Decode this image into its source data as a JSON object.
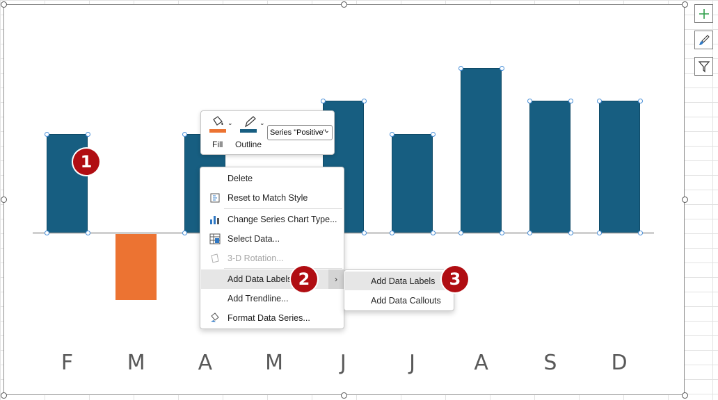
{
  "chart_data": {
    "type": "bar",
    "categories": [
      "F",
      "M",
      "A",
      "M",
      "J",
      "J",
      "A",
      "S",
      "D"
    ],
    "series": [
      {
        "name": "Positive",
        "values": [
          3,
          null,
          3,
          null,
          4,
          3,
          5,
          4,
          4
        ]
      },
      {
        "values": [
          null,
          -2,
          null,
          null,
          null,
          null,
          null,
          null,
          null
        ]
      }
    ],
    "ylim": [
      -4,
      6
    ],
    "colors": {
      "positive": "#175e81",
      "negative": "#ec7332"
    },
    "title": "",
    "xlabel": "",
    "ylabel": "",
    "grid": false
  },
  "badges": [
    "1",
    "2",
    "3"
  ],
  "mini_toolbar": {
    "fill_label": "Fill",
    "outline_label": "Outline",
    "series_select": "Series \"Positive\"",
    "fill_color": "#ec7332",
    "outline_color": "#175e81"
  },
  "context_menu": {
    "items": [
      {
        "label": "Delete",
        "icon": "none",
        "disabled": false
      },
      {
        "label": "Reset to Match Style",
        "icon": "reset-style-icon",
        "disabled": false
      },
      {
        "label": "Change Series Chart Type...",
        "icon": "chart-type-icon",
        "disabled": false
      },
      {
        "label": "Select Data...",
        "icon": "select-data-icon",
        "disabled": false
      },
      {
        "label": "3-D Rotation...",
        "icon": "rotation-3d-icon",
        "disabled": true
      },
      {
        "label": "Add Data Labels",
        "icon": "none",
        "disabled": false,
        "has_submenu": true
      },
      {
        "label": "Add Trendline...",
        "icon": "none",
        "disabled": false
      },
      {
        "label": "Format Data Series...",
        "icon": "format-series-icon",
        "disabled": false
      }
    ]
  },
  "submenu": {
    "items": [
      {
        "label": "Add Data Labels"
      },
      {
        "label": "Add Data Callouts"
      }
    ]
  },
  "side_buttons": [
    "chart-elements-icon",
    "chart-styles-icon",
    "chart-filters-icon"
  ]
}
